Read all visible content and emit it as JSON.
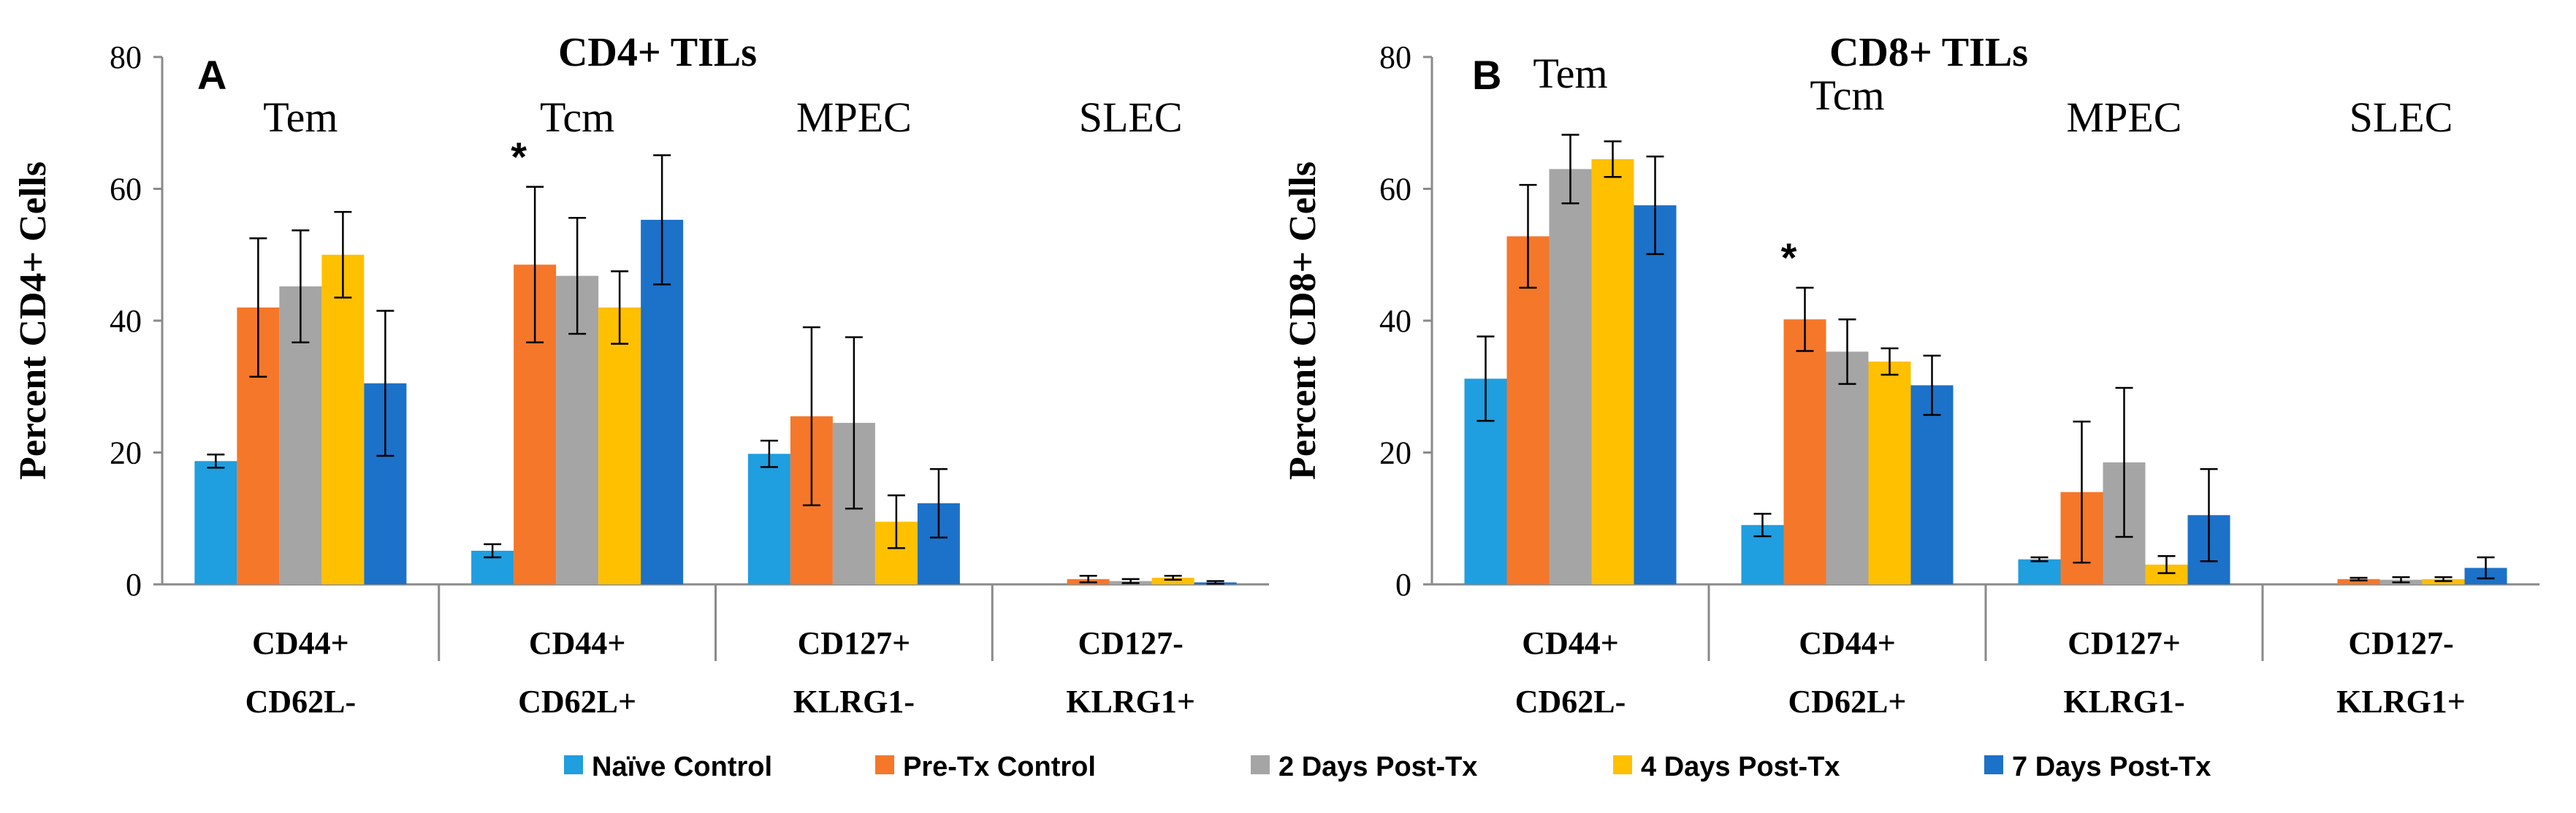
{
  "legend": [
    {
      "name": "Naïve Control",
      "color": "#1f9ee0"
    },
    {
      "name": "Pre-Tx Control",
      "color": "#f5772a"
    },
    {
      "name": "2 Days Post-Tx",
      "color": "#a5a5a5"
    },
    {
      "name": "4 Days Post-Tx",
      "color": "#ffc000"
    },
    {
      "name": "7 Days Post-Tx",
      "color": "#1c71c9"
    }
  ],
  "chart_data": [
    {
      "type": "bar",
      "panel": "A",
      "title": "CD4+ TILs",
      "ylabel": "Percent CD4+ Cells",
      "ylim": [
        0,
        80
      ],
      "yticks": [
        "0",
        "20",
        "40",
        "60",
        "80"
      ],
      "categories": [
        {
          "line1": "CD44+",
          "line2": "CD62L-",
          "group": "Tem"
        },
        {
          "line1": "CD44+",
          "line2": "CD62L+",
          "group": "Tcm"
        },
        {
          "line1": "CD127+",
          "line2": "KLRG1-",
          "group": "MPEC"
        },
        {
          "line1": "CD127-",
          "line2": "KLRG1+",
          "group": "SLEC"
        }
      ],
      "series": [
        {
          "name": "Naïve Control",
          "values": [
            18.7,
            5.1,
            19.8,
            0.0
          ],
          "errors": [
            1.0,
            1.0,
            2.0,
            0.0
          ]
        },
        {
          "name": "Pre-Tx Control",
          "values": [
            42.0,
            48.5,
            25.5,
            0.8
          ],
          "errors": [
            10.5,
            11.8,
            13.5,
            0.5
          ]
        },
        {
          "name": "2 Days Post-Tx",
          "values": [
            45.2,
            46.8,
            24.5,
            0.5
          ],
          "errors": [
            8.5,
            8.8,
            13.0,
            0.3
          ]
        },
        {
          "name": "4 Days Post-Tx",
          "values": [
            50.0,
            42.0,
            9.5,
            1.0
          ],
          "errors": [
            6.5,
            5.5,
            4.0,
            0.3
          ]
        },
        {
          "name": "7 Days Post-Tx",
          "values": [
            30.5,
            55.3,
            12.3,
            0.3
          ],
          "errors": [
            11.0,
            9.8,
            5.2,
            0.2
          ]
        }
      ],
      "annotations": [
        {
          "category_index": 1,
          "series_index": 1,
          "text": "*"
        }
      ]
    },
    {
      "type": "bar",
      "panel": "B",
      "title": "CD8+ TILs",
      "ylabel": "Percent CD8+ Cells",
      "ylim": [
        0,
        80
      ],
      "yticks": [
        "0",
        "20",
        "40",
        "60",
        "80"
      ],
      "categories": [
        {
          "line1": "CD44+",
          "line2": "CD62L-",
          "group": "Tem"
        },
        {
          "line1": "CD44+",
          "line2": "CD62L+",
          "group": "Tcm"
        },
        {
          "line1": "CD127+",
          "line2": "KLRG1-",
          "group": "MPEC"
        },
        {
          "line1": "CD127-",
          "line2": "KLRG1+",
          "group": "SLEC"
        }
      ],
      "series": [
        {
          "name": "Naïve Control",
          "values": [
            31.2,
            9.0,
            3.8,
            0.0
          ],
          "errors": [
            6.4,
            1.7,
            0.3,
            0.0
          ]
        },
        {
          "name": "Pre-Tx Control",
          "values": [
            52.8,
            40.2,
            14.0,
            0.8
          ],
          "errors": [
            7.8,
            4.8,
            10.7,
            0.2
          ]
        },
        {
          "name": "2 Days Post-Tx",
          "values": [
            63.0,
            35.3,
            18.5,
            0.7
          ],
          "errors": [
            5.2,
            4.9,
            11.3,
            0.4
          ]
        },
        {
          "name": "4 Days Post-Tx",
          "values": [
            64.5,
            33.8,
            3.0,
            0.8
          ],
          "errors": [
            2.7,
            2.0,
            1.3,
            0.3
          ]
        },
        {
          "name": "7 Days Post-Tx",
          "values": [
            57.5,
            30.2,
            10.5,
            2.5
          ],
          "errors": [
            7.4,
            4.5,
            7.0,
            1.6
          ]
        }
      ],
      "annotations": [
        {
          "category_index": 1,
          "series_index": 1,
          "text": "*"
        }
      ]
    }
  ]
}
